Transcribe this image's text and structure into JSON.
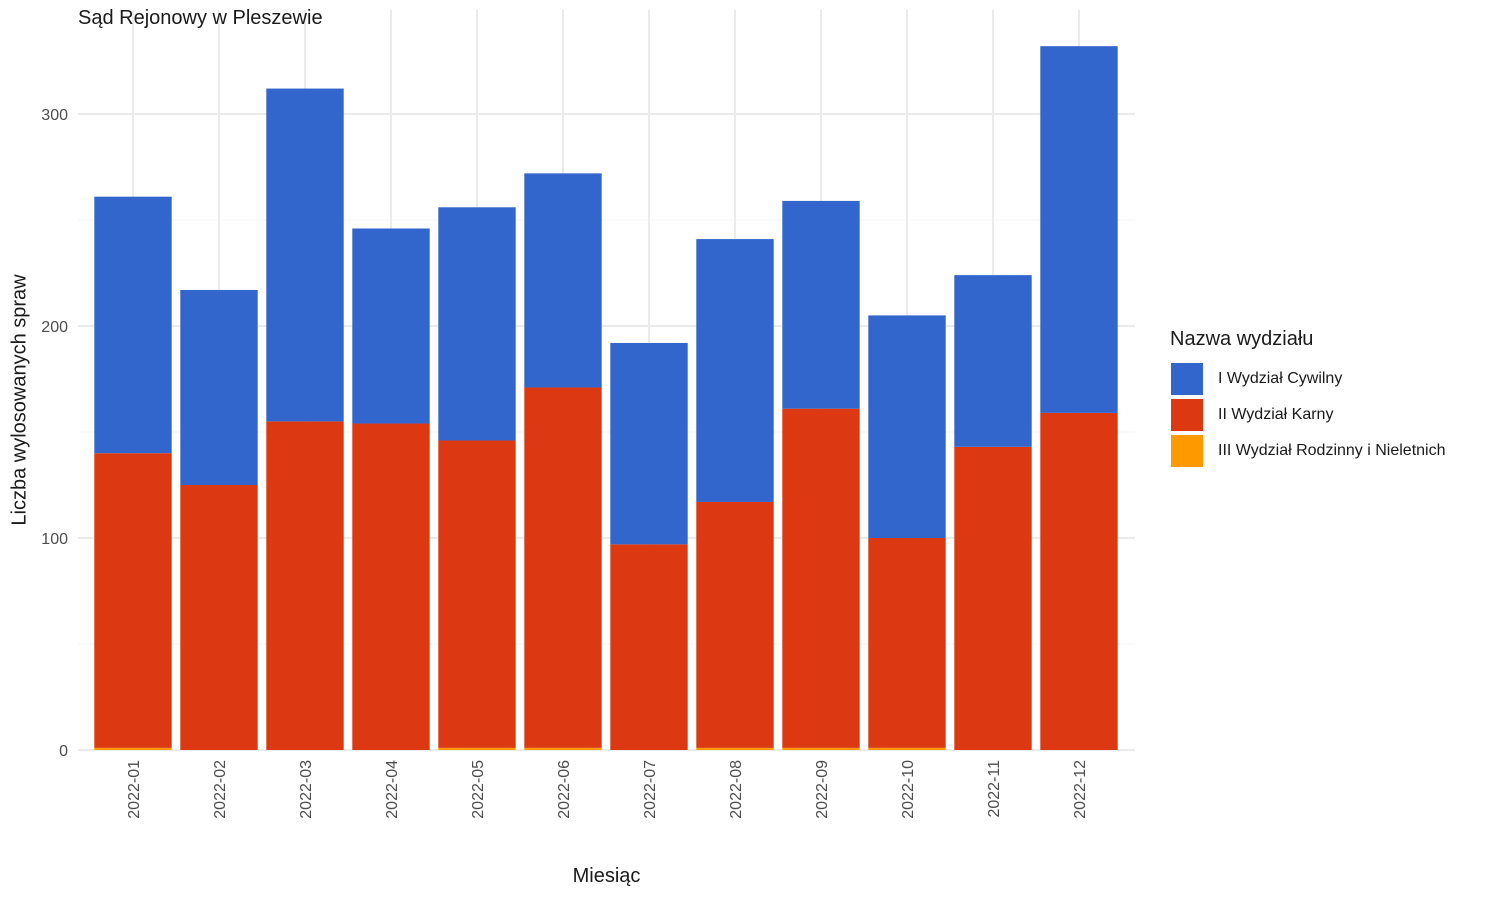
{
  "title": "Sąd Rejonowy w Pleszewie",
  "chart_data": {
    "type": "bar",
    "stacked": true,
    "title": "Sąd Rejonowy w Pleszewie",
    "xlabel": "Miesiąc",
    "ylabel": "Liczba wylosowanych spraw",
    "ylim": [
      0,
      335
    ],
    "yticks": [
      0,
      100,
      200,
      300
    ],
    "grid": true,
    "legend_position": "right",
    "legend_title": "Nazwa wydziału",
    "categories": [
      "2022-01",
      "2022-02",
      "2022-03",
      "2022-04",
      "2022-05",
      "2022-06",
      "2022-07",
      "2022-08",
      "2022-09",
      "2022-10",
      "2022-11",
      "2022-12"
    ],
    "series": [
      {
        "name": "I Wydział Cywilny",
        "color": "#3366CC",
        "values": [
          121,
          92,
          157,
          92,
          110,
          101,
          95,
          124,
          98,
          105,
          81,
          173
        ]
      },
      {
        "name": "II Wydział Karny",
        "color": "#DC3912",
        "values": [
          139,
          125,
          155,
          154,
          145,
          170,
          97,
          116,
          160,
          99,
          143,
          159
        ]
      },
      {
        "name": "III Wydział Rodzinny i Nieletnich",
        "color": "#FF9900",
        "values": [
          1,
          0,
          0,
          0,
          1,
          1,
          0,
          1,
          1,
          1,
          0,
          0
        ]
      }
    ]
  }
}
